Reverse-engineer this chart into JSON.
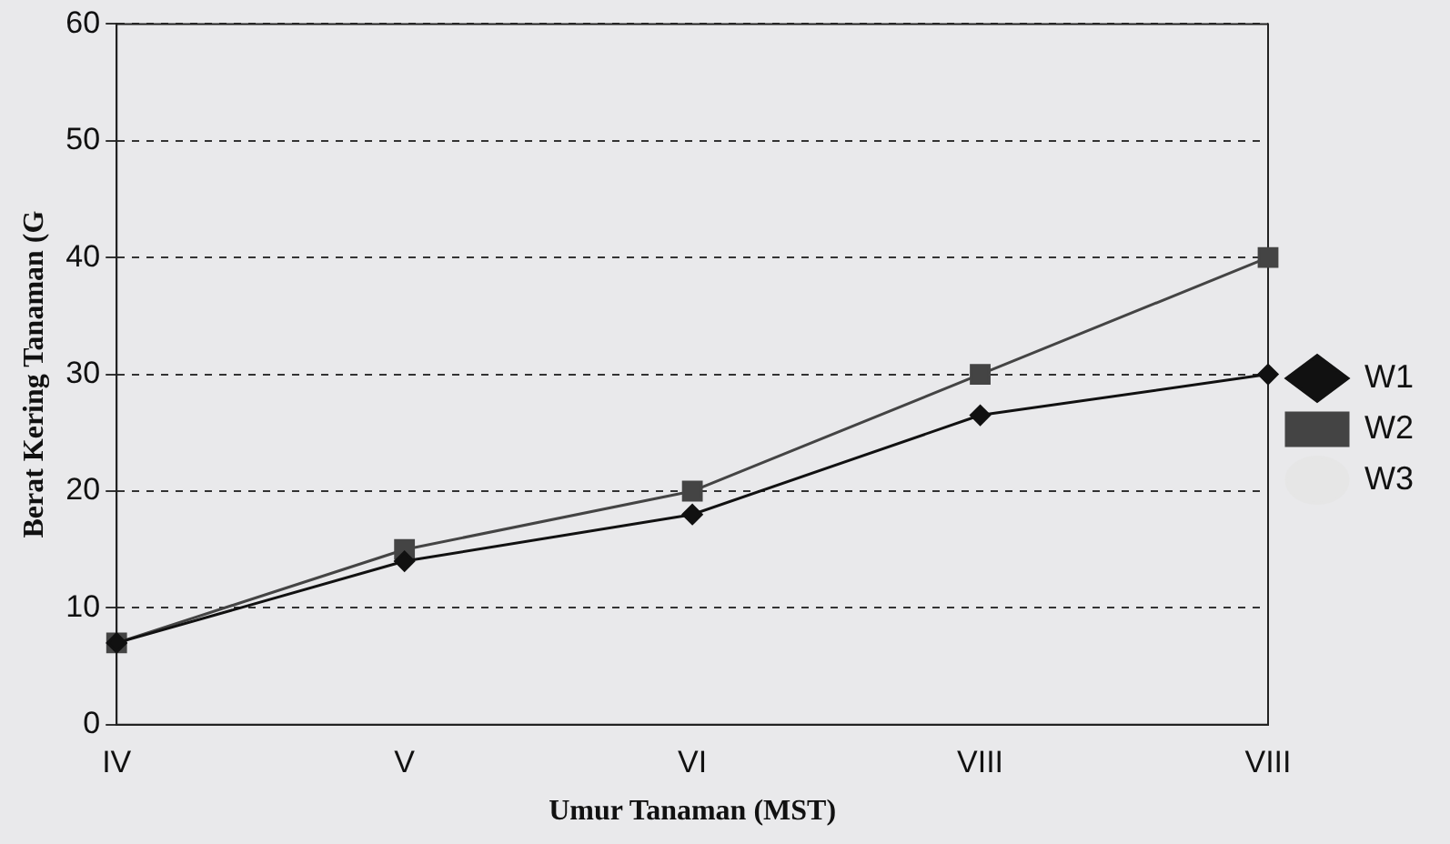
{
  "chart_data": {
    "type": "line",
    "xlabel": "Umur Tanaman (MST)",
    "ylabel": "Berat Kering Tanaman (G",
    "categories": [
      "IV",
      "V",
      "VI",
      "VIII",
      "VIII"
    ],
    "series": [
      {
        "name": "W1",
        "color": "#111111",
        "marker": "diamond",
        "values": [
          7,
          14,
          18,
          26.5,
          30
        ]
      },
      {
        "name": "W2",
        "color": "#444444",
        "marker": "square",
        "values": [
          7,
          15,
          20,
          30,
          40
        ]
      },
      {
        "name": "W3",
        "color": "#e6e6e6",
        "marker": "none",
        "values": [
          null,
          null,
          null,
          null,
          null
        ]
      }
    ],
    "ylim": [
      0,
      60
    ],
    "yticks": [
      0,
      10,
      20,
      30,
      40,
      50,
      60
    ],
    "grid": "y",
    "legend": "right"
  }
}
